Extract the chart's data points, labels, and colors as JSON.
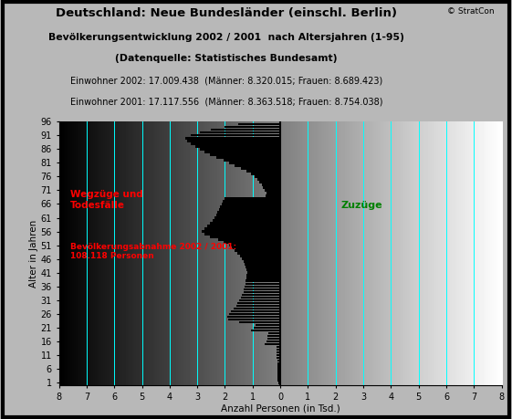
{
  "title_line1": "Deutschland: Neue Bundesländer (einschl. Berlin)",
  "title_line2": "Bevölkerungsentwicklung 2002 / 2001  nach Altersjahren (1-95)",
  "title_line3": "(Datenquelle: Statistisches Bundesamt)",
  "subtitle1": "Einwohner 2002: 17.009.438  (Männer: 8.320.015; Frauen: 8.689.423)",
  "subtitle2": "Einwohner 2001: 17.117.556  (Männer: 8.363.518; Frauen: 8.754.038)",
  "copyright": "© StratCon",
  "xlabel": "Anzahl Personen (in Tsd.)",
  "ylabel": "Alter in Jahren",
  "label_wegzuge": "Wegzüge und\nTodesfälle",
  "label_zuzuge": "Zuzüge",
  "label_abnahme": "Bevölkerungsabnahme 2002 / 2001:\n108.118 Personen",
  "xlim": [
    -8,
    8
  ],
  "ylim": [
    0,
    96
  ],
  "yticks": [
    1,
    6,
    11,
    16,
    21,
    26,
    31,
    36,
    41,
    46,
    51,
    56,
    61,
    66,
    71,
    76,
    81,
    86,
    91,
    96
  ],
  "ytick_labels": [
    "1",
    "6",
    "11",
    "16",
    "21",
    "26",
    "31",
    "36",
    "41",
    "46",
    "51",
    "56",
    "61",
    "66",
    "71",
    "76",
    "81",
    "86",
    "91",
    "96"
  ],
  "xticks": [
    -8,
    -7,
    -6,
    -5,
    -4,
    -3,
    -2,
    -1,
    0,
    1,
    2,
    3,
    4,
    5,
    6,
    7,
    8
  ],
  "xtick_labels": [
    "8",
    "7",
    "6",
    "5",
    "4",
    "3",
    "2",
    "1",
    "0",
    "1",
    "2",
    "3",
    "4",
    "5",
    "6",
    "7",
    "8"
  ],
  "bar_color": "#000000",
  "grid_color": "#00ffff",
  "label_wegzuge_color": "#ff0000",
  "label_zuzuge_color": "#008000",
  "label_abnahme_color": "#ff0000",
  "values": [
    -0.08,
    -0.09,
    -0.1,
    -0.11,
    -0.12,
    -0.13,
    -0.14,
    -0.15,
    -0.16,
    -0.17,
    -0.18,
    -0.19,
    -0.2,
    -0.22,
    -0.55,
    -0.5,
    -0.45,
    -0.42,
    -0.4,
    -1.0,
    -0.95,
    -0.9,
    -1.45,
    -1.85,
    -1.9,
    -1.85,
    -1.75,
    -1.65,
    -1.58,
    -1.52,
    -1.46,
    -1.42,
    -1.38,
    -1.35,
    -1.32,
    -1.3,
    -1.28,
    -1.25,
    -1.23,
    -1.22,
    -1.2,
    -1.22,
    -1.25,
    -1.28,
    -1.32,
    -1.38,
    -1.45,
    -1.55,
    -1.65,
    -1.75,
    -1.85,
    -2.05,
    -2.25,
    -2.55,
    -2.75,
    -2.85,
    -2.75,
    -2.65,
    -2.55,
    -2.45,
    -2.38,
    -2.32,
    -2.28,
    -2.22,
    -2.18,
    -2.12,
    -2.08,
    -2.02,
    -0.55,
    -0.5,
    -0.55,
    -0.6,
    -0.65,
    -0.7,
    -0.75,
    -0.8,
    -0.9,
    -1.0,
    -1.2,
    -1.4,
    -1.6,
    -1.8,
    -2.0,
    -2.2,
    -2.5,
    -2.7,
    -2.9,
    -3.1,
    -3.3,
    -3.4,
    -3.2,
    -2.9,
    -2.5,
    -2.0,
    -1.5
  ]
}
